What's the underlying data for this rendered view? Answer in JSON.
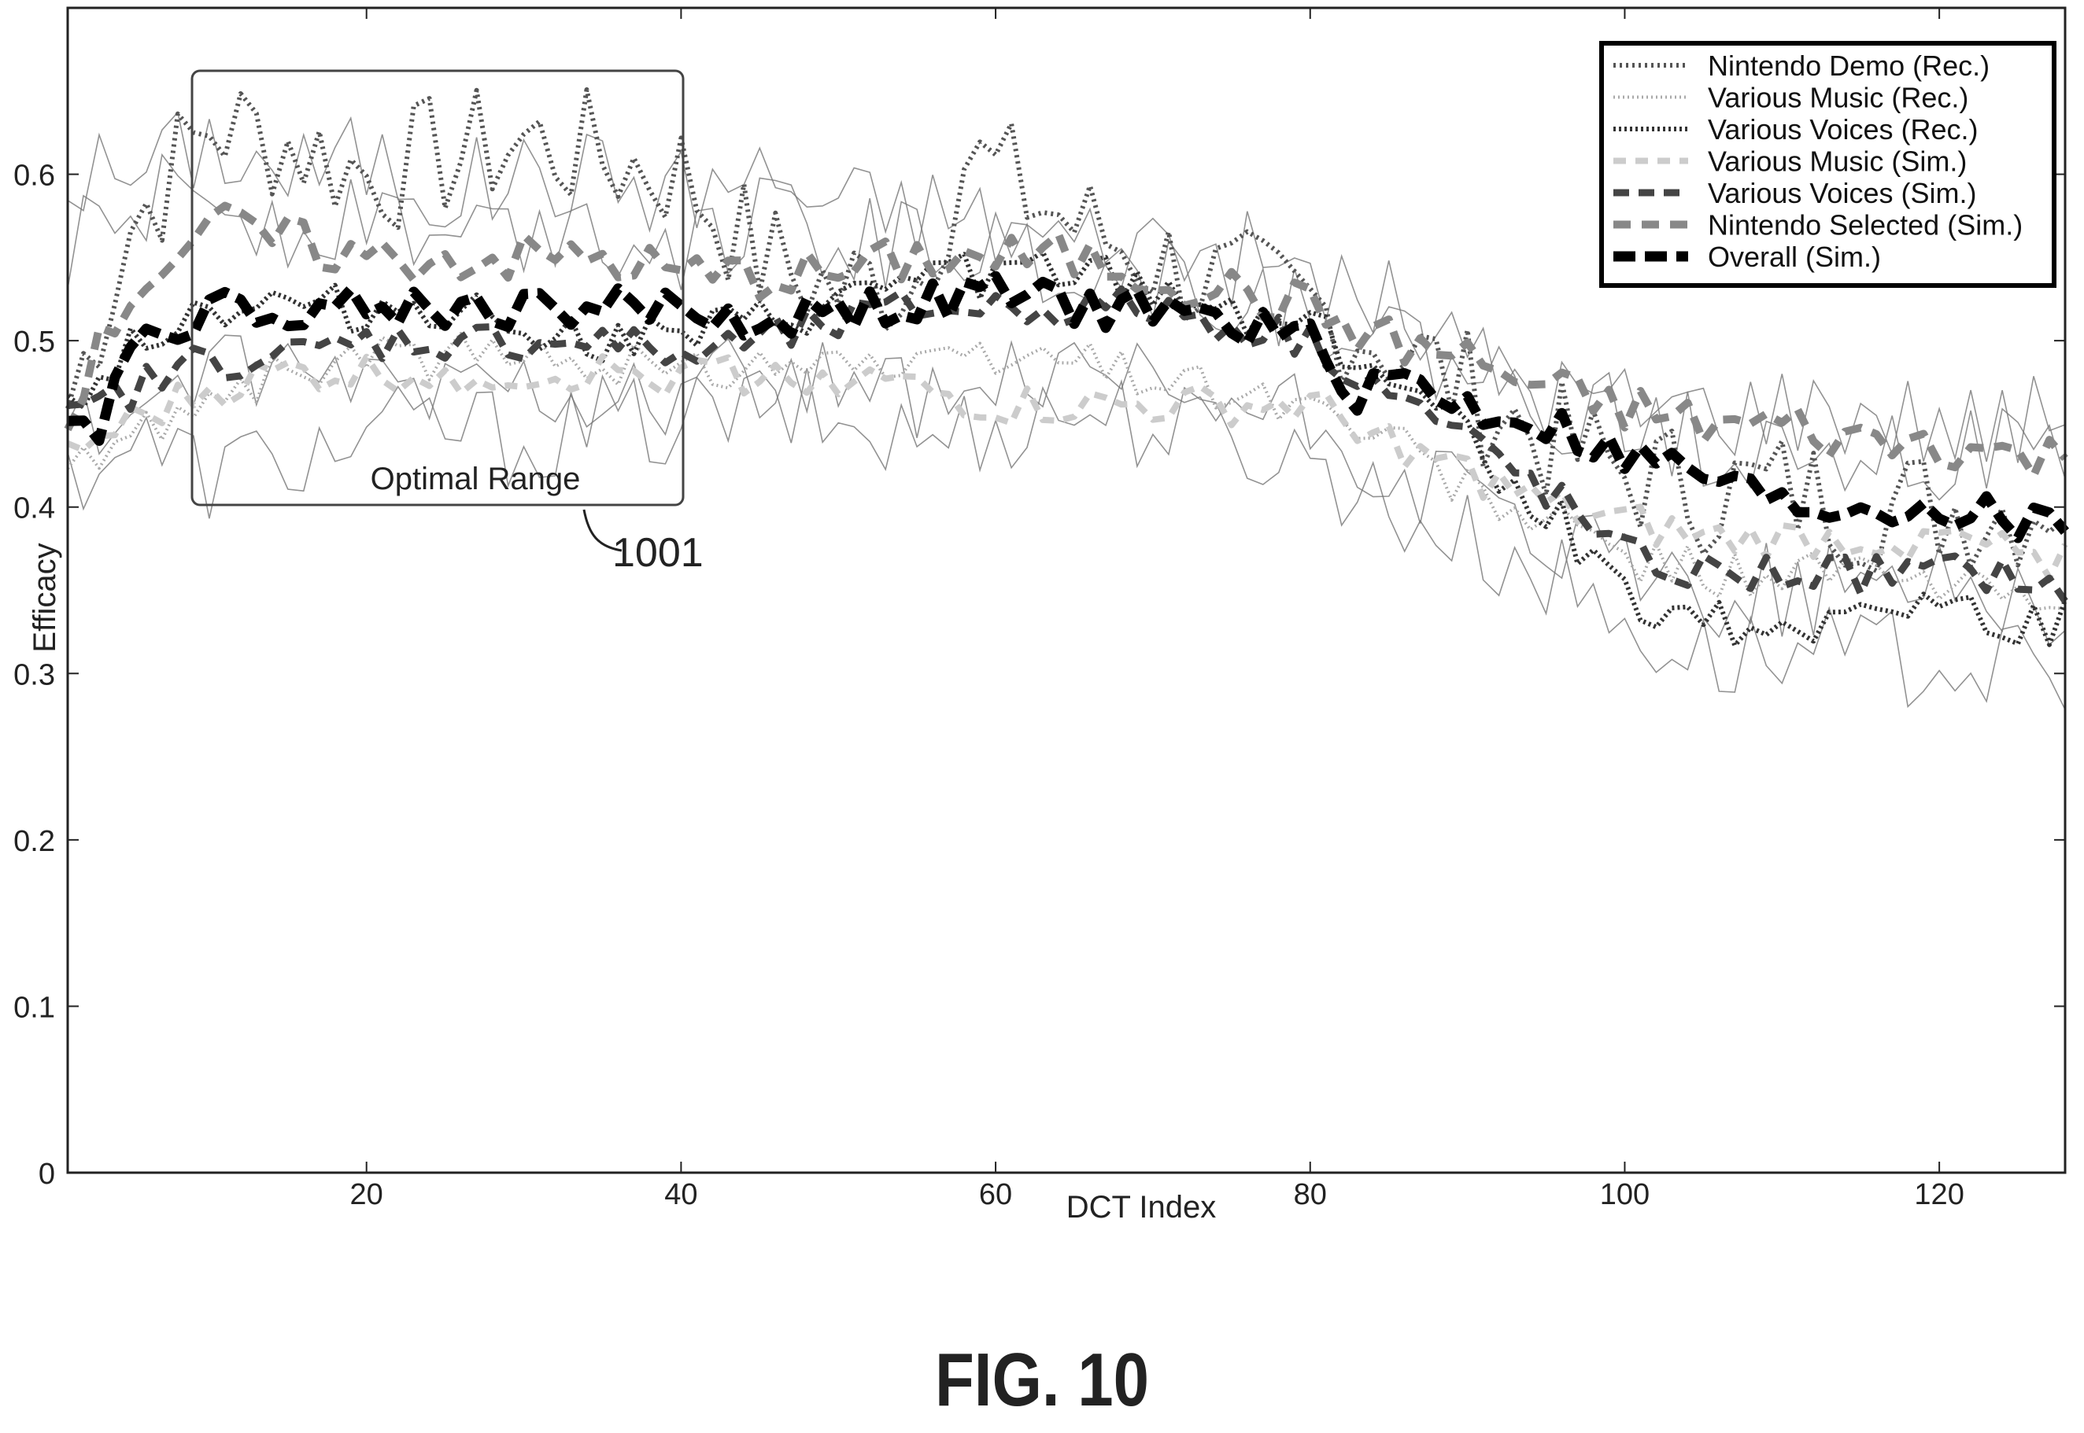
{
  "figure_label": "FIG. 10",
  "colors": {
    "nintendo_demo_rec": "#555555",
    "various_music_rec": "#aaaaaa",
    "various_voices_rec": "#333333",
    "various_music_sim": "#cccccc",
    "various_voices_sim": "#444444",
    "nintendo_selected_sim": "#888888",
    "overall_sim": "#000000",
    "thin_traces": "#777777"
  },
  "chart_data": {
    "type": "line",
    "title": "",
    "xlabel": "DCT Index",
    "ylabel": "Efficacy",
    "xlim": [
      1,
      128
    ],
    "ylim": [
      0,
      0.7
    ],
    "xticks": [
      20,
      40,
      60,
      80,
      100,
      120
    ],
    "yticks": [
      0,
      0.1,
      0.2,
      0.3,
      0.4,
      0.5,
      0.6
    ],
    "ytick_labels": [
      "0",
      "0.1",
      "0.2",
      "0.3",
      "0.4",
      "0.5",
      "0.6"
    ],
    "grid": false,
    "legend_position": "top-right",
    "annotations": [
      {
        "text": "Optimal Range",
        "x_range": [
          9,
          40
        ],
        "y_range": [
          0.4,
          0.66
        ]
      },
      {
        "text": "1001",
        "x": 42,
        "y": 0.375
      }
    ],
    "series": [
      {
        "name": "Nintendo Demo (Rec.)",
        "style": "dotted",
        "color_key": "nintendo_demo_rec",
        "x": [
          1,
          5,
          10,
          15,
          20,
          25,
          30,
          35,
          40,
          45,
          50,
          55,
          58,
          60,
          65,
          70,
          75,
          80,
          85,
          90,
          95,
          100,
          105,
          110,
          115,
          120,
          125,
          128
        ],
        "y": [
          0.46,
          0.57,
          0.63,
          0.62,
          0.6,
          0.61,
          0.62,
          0.61,
          0.6,
          0.55,
          0.53,
          0.54,
          0.61,
          0.6,
          0.57,
          0.55,
          0.53,
          0.52,
          0.5,
          0.47,
          0.44,
          0.42,
          0.41,
          0.41,
          0.4,
          0.4,
          0.4,
          0.41
        ]
      },
      {
        "name": "Various Music (Rec.)",
        "style": "dotted-light",
        "color_key": "various_music_rec",
        "x": [
          1,
          5,
          10,
          15,
          20,
          25,
          30,
          35,
          40,
          45,
          50,
          55,
          60,
          65,
          70,
          75,
          80,
          85,
          90,
          95,
          100,
          105,
          110,
          115,
          120,
          125,
          128
        ],
        "y": [
          0.42,
          0.44,
          0.47,
          0.48,
          0.49,
          0.49,
          0.49,
          0.49,
          0.48,
          0.49,
          0.49,
          0.48,
          0.49,
          0.49,
          0.48,
          0.47,
          0.46,
          0.44,
          0.41,
          0.39,
          0.37,
          0.36,
          0.36,
          0.36,
          0.35,
          0.35,
          0.35
        ]
      },
      {
        "name": "Various Voices (Rec.)",
        "style": "dotted-dark",
        "color_key": "various_voices_rec",
        "x": [
          1,
          5,
          10,
          15,
          20,
          25,
          30,
          35,
          40,
          45,
          50,
          55,
          60,
          65,
          70,
          75,
          80,
          85,
          90,
          95,
          100,
          105,
          110,
          115,
          120,
          125,
          128
        ],
        "y": [
          0.46,
          0.5,
          0.52,
          0.52,
          0.52,
          0.52,
          0.51,
          0.5,
          0.5,
          0.51,
          0.52,
          0.54,
          0.54,
          0.54,
          0.53,
          0.52,
          0.51,
          0.48,
          0.44,
          0.4,
          0.35,
          0.33,
          0.33,
          0.34,
          0.34,
          0.33,
          0.33
        ]
      },
      {
        "name": "Various Music (Sim.)",
        "style": "dash-light",
        "color_key": "various_music_sim",
        "x": [
          1,
          5,
          10,
          15,
          20,
          25,
          30,
          35,
          40,
          45,
          50,
          55,
          60,
          65,
          70,
          75,
          80,
          85,
          90,
          95,
          100,
          105,
          110,
          115,
          120,
          125,
          128
        ],
        "y": [
          0.43,
          0.45,
          0.47,
          0.48,
          0.48,
          0.48,
          0.48,
          0.48,
          0.48,
          0.48,
          0.48,
          0.47,
          0.46,
          0.46,
          0.46,
          0.46,
          0.46,
          0.44,
          0.42,
          0.4,
          0.39,
          0.38,
          0.38,
          0.38,
          0.38,
          0.37,
          0.37
        ]
      },
      {
        "name": "Various Voices (Sim.)",
        "style": "dash-dark",
        "color_key": "various_voices_sim",
        "x": [
          1,
          5,
          10,
          15,
          20,
          25,
          30,
          35,
          40,
          45,
          50,
          55,
          60,
          65,
          70,
          75,
          80,
          85,
          90,
          95,
          100,
          105,
          110,
          115,
          120,
          125,
          128
        ],
        "y": [
          0.45,
          0.47,
          0.49,
          0.49,
          0.5,
          0.5,
          0.5,
          0.5,
          0.49,
          0.5,
          0.51,
          0.52,
          0.52,
          0.52,
          0.52,
          0.51,
          0.5,
          0.47,
          0.44,
          0.41,
          0.37,
          0.36,
          0.36,
          0.36,
          0.36,
          0.36,
          0.34
        ]
      },
      {
        "name": "Nintendo Selected (Sim.)",
        "style": "dash-medium",
        "color_key": "nintendo_selected_sim",
        "x": [
          1,
          5,
          10,
          15,
          20,
          25,
          30,
          35,
          40,
          45,
          50,
          55,
          60,
          65,
          70,
          75,
          80,
          85,
          90,
          95,
          100,
          105,
          110,
          115,
          120,
          125,
          128
        ],
        "y": [
          0.46,
          0.53,
          0.57,
          0.56,
          0.55,
          0.55,
          0.55,
          0.55,
          0.54,
          0.54,
          0.54,
          0.55,
          0.55,
          0.55,
          0.54,
          0.53,
          0.52,
          0.5,
          0.49,
          0.47,
          0.46,
          0.45,
          0.45,
          0.44,
          0.44,
          0.43,
          0.43
        ]
      },
      {
        "name": "Overall (Sim.)",
        "style": "dash-bold",
        "color_key": "overall_sim",
        "x": [
          1,
          3,
          5,
          10,
          15,
          20,
          25,
          30,
          35,
          40,
          45,
          50,
          55,
          60,
          65,
          70,
          75,
          80,
          83,
          85,
          90,
          95,
          100,
          105,
          110,
          115,
          120,
          125,
          128
        ],
        "y": [
          0.46,
          0.45,
          0.5,
          0.52,
          0.52,
          0.52,
          0.52,
          0.52,
          0.52,
          0.52,
          0.51,
          0.52,
          0.52,
          0.53,
          0.52,
          0.52,
          0.51,
          0.5,
          0.47,
          0.48,
          0.46,
          0.45,
          0.43,
          0.42,
          0.4,
          0.4,
          0.4,
          0.39,
          0.39
        ]
      }
    ],
    "background_traces": [
      {
        "x": [
          1,
          5,
          10,
          15,
          20,
          25,
          30,
          35,
          40,
          45,
          50,
          55,
          60,
          65,
          70,
          75,
          80,
          85,
          90,
          95,
          100,
          105,
          110,
          115,
          120,
          125,
          128
        ],
        "y": [
          0.6,
          0.6,
          0.62,
          0.6,
          0.61,
          0.59,
          0.6,
          0.6,
          0.59,
          0.6,
          0.58,
          0.58,
          0.57,
          0.56,
          0.56,
          0.55,
          0.54,
          0.52,
          0.49,
          0.47,
          0.46,
          0.46,
          0.46,
          0.46,
          0.45,
          0.45,
          0.46
        ]
      },
      {
        "x": [
          1,
          5,
          10,
          15,
          20,
          25,
          30,
          35,
          40,
          45,
          50,
          55,
          60,
          65,
          70,
          75,
          80,
          85,
          90,
          95,
          100,
          105,
          110,
          115,
          120,
          125,
          128
        ],
        "y": [
          0.42,
          0.44,
          0.42,
          0.43,
          0.44,
          0.45,
          0.44,
          0.45,
          0.45,
          0.46,
          0.45,
          0.44,
          0.45,
          0.46,
          0.45,
          0.44,
          0.43,
          0.4,
          0.38,
          0.36,
          0.33,
          0.31,
          0.31,
          0.31,
          0.31,
          0.3,
          0.29
        ]
      },
      {
        "x": [
          1,
          5,
          10,
          15,
          20,
          25,
          30,
          35,
          40,
          45,
          50,
          55,
          60,
          65,
          70,
          75,
          80,
          85,
          90,
          95,
          100,
          105,
          110,
          115,
          120,
          125,
          128
        ],
        "y": [
          0.55,
          0.58,
          0.59,
          0.57,
          0.58,
          0.56,
          0.57,
          0.57,
          0.56,
          0.57,
          0.56,
          0.56,
          0.55,
          0.55,
          0.54,
          0.53,
          0.52,
          0.5,
          0.48,
          0.46,
          0.45,
          0.44,
          0.44,
          0.44,
          0.43,
          0.43,
          0.43
        ]
      },
      {
        "x": [
          1,
          5,
          10,
          15,
          20,
          25,
          30,
          35,
          40,
          45,
          50,
          55,
          60,
          65,
          70,
          75,
          80,
          85,
          90,
          95,
          100,
          105,
          110,
          115,
          120,
          125,
          128
        ],
        "y": [
          0.44,
          0.46,
          0.48,
          0.47,
          0.48,
          0.47,
          0.48,
          0.47,
          0.47,
          0.48,
          0.47,
          0.46,
          0.47,
          0.47,
          0.47,
          0.46,
          0.45,
          0.42,
          0.4,
          0.38,
          0.36,
          0.35,
          0.35,
          0.35,
          0.36,
          0.35,
          0.34
        ]
      }
    ]
  }
}
